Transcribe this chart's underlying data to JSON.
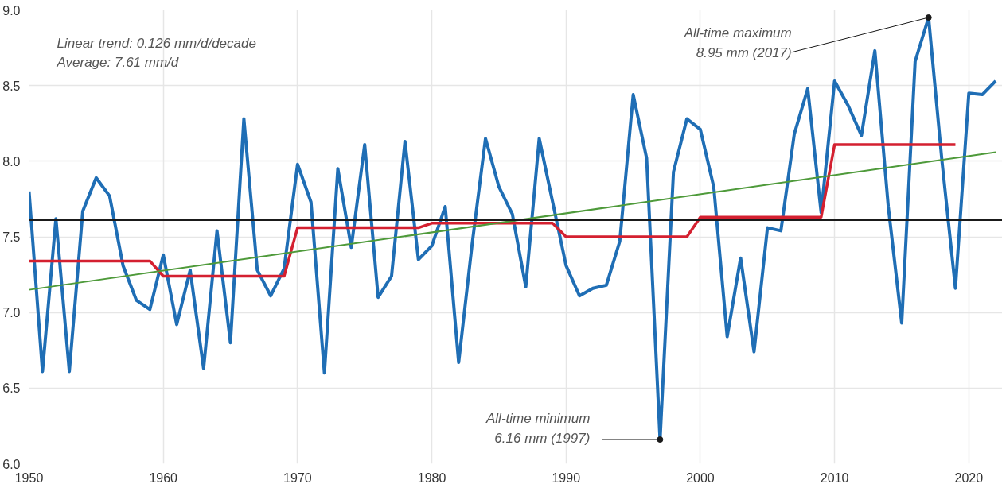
{
  "chart_data": {
    "type": "line",
    "x": [
      1950,
      1951,
      1952,
      1953,
      1954,
      1955,
      1956,
      1957,
      1958,
      1959,
      1960,
      1961,
      1962,
      1963,
      1964,
      1965,
      1966,
      1967,
      1968,
      1969,
      1970,
      1971,
      1972,
      1973,
      1974,
      1975,
      1976,
      1977,
      1978,
      1979,
      1980,
      1981,
      1982,
      1983,
      1984,
      1985,
      1986,
      1987,
      1988,
      1989,
      1990,
      1991,
      1992,
      1993,
      1994,
      1995,
      1996,
      1997,
      1998,
      1999,
      2000,
      2001,
      2002,
      2003,
      2004,
      2005,
      2006,
      2007,
      2008,
      2009,
      2010,
      2011,
      2012,
      2013,
      2014,
      2015,
      2016,
      2017,
      2018,
      2019,
      2020,
      2021,
      2022
    ],
    "series": [
      {
        "color": "#1f6eb5",
        "values": [
          7.8,
          6.61,
          7.62,
          6.61,
          7.67,
          7.89,
          7.77,
          7.31,
          7.08,
          7.02,
          7.38,
          6.92,
          7.28,
          6.63,
          7.54,
          6.8,
          8.28,
          7.28,
          7.11,
          7.29,
          7.98,
          7.73,
          6.6,
          7.95,
          7.43,
          8.11,
          7.1,
          7.24,
          8.13,
          7.35,
          7.44,
          7.7,
          6.67,
          7.45,
          8.15,
          7.83,
          7.65,
          7.17,
          8.15,
          7.73,
          7.31,
          7.11,
          7.16,
          7.18,
          7.47,
          8.44,
          8.02,
          6.16,
          7.93,
          8.28,
          8.21,
          7.83,
          6.84,
          7.36,
          6.74,
          7.56,
          7.54,
          8.18,
          8.48,
          7.66,
          8.53,
          8.37,
          8.17,
          8.73,
          7.7,
          6.93,
          8.66,
          8.95,
          8.0,
          7.16,
          8.45,
          8.44,
          8.53
        ]
      },
      {
        "color": "#d42030",
        "x": [
          1950,
          1959,
          1960,
          1969,
          1970,
          1979,
          1980,
          1989,
          1990,
          1999,
          2000,
          2009,
          2010,
          2019
        ],
        "values": [
          7.34,
          7.34,
          7.24,
          7.24,
          7.56,
          7.56,
          7.59,
          7.59,
          7.5,
          7.5,
          7.63,
          7.63,
          8.11,
          8.11
        ]
      },
      {
        "color": "#4e9a3a",
        "x": [
          1950,
          2022
        ],
        "values": [
          7.15,
          8.06
        ]
      }
    ],
    "ref_lines": [
      {
        "axis": "y",
        "value": 7.61,
        "color": "#1a1a1a"
      }
    ],
    "annotations": [
      "Linear trend: 0.126 mm/d/decade",
      "Average: 7.61 mm/d",
      {
        "text": "All-time maximum\n8.95 mm (2017)",
        "x": 2017,
        "y": 8.95
      },
      {
        "text": "All-time minimum\n6.16 mm (1997)",
        "x": 1997,
        "y": 6.16
      }
    ],
    "xlim": [
      1950,
      2022.5
    ],
    "ylim": [
      6,
      9
    ],
    "xticks": [
      1950,
      1960,
      1970,
      1980,
      1990,
      2000,
      2010,
      2020
    ],
    "yticks": [
      {
        "value": 6,
        "label": "6.0"
      },
      {
        "value": 6.5,
        "label": "6.5"
      },
      {
        "value": 7,
        "label": "7.0"
      },
      {
        "value": 7.5,
        "label": "7.5"
      },
      {
        "value": 8,
        "label": "8.0"
      },
      {
        "value": 8.5,
        "label": "8.5"
      },
      {
        "value": 9,
        "label": "9.0"
      }
    ],
    "grid": true
  }
}
